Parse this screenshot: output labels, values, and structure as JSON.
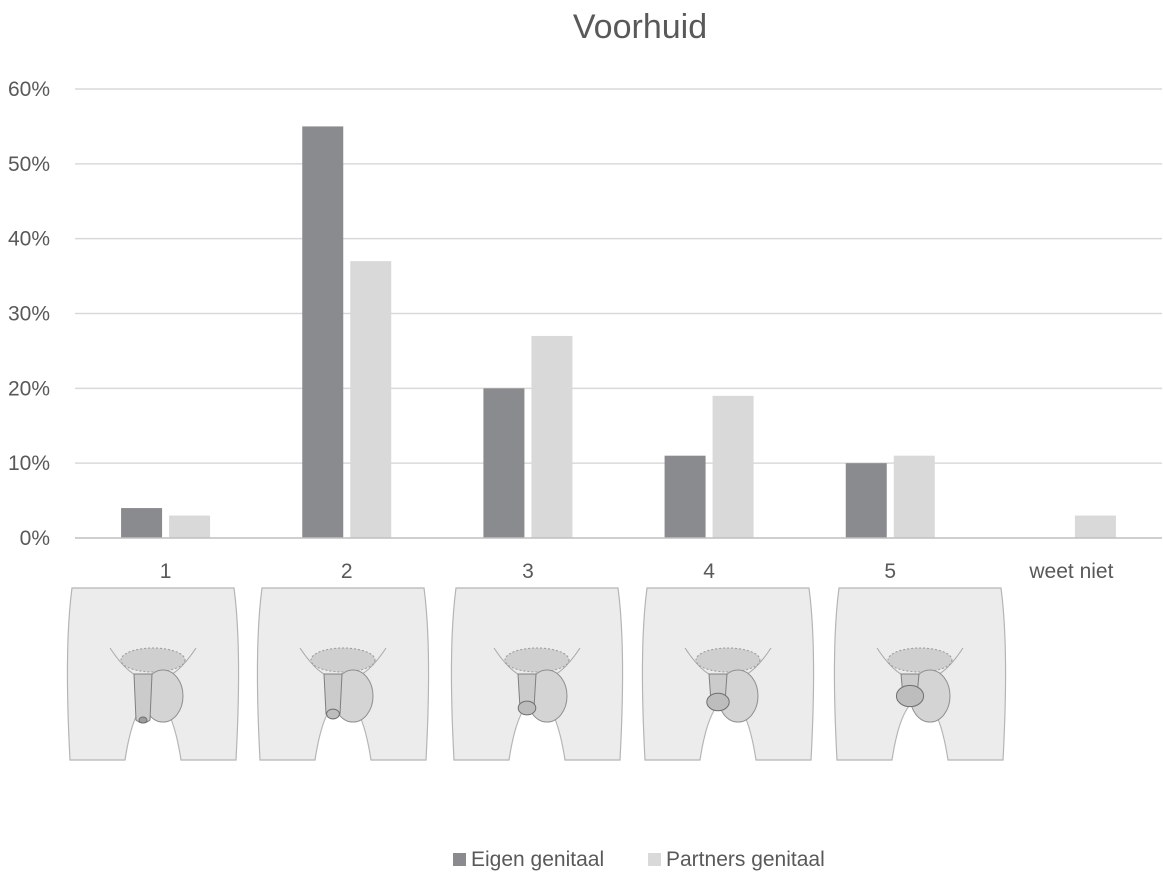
{
  "chart_data": {
    "type": "bar",
    "title": "Voorhuid",
    "categories": [
      "1",
      "2",
      "3",
      "4",
      "5",
      "weet niet"
    ],
    "series": [
      {
        "name": "Eigen genitaal",
        "values": [
          4,
          55,
          20,
          11,
          10,
          0
        ],
        "color": "#8a8b8f"
      },
      {
        "name": "Partners genitaal",
        "values": [
          3,
          37,
          27,
          19,
          11,
          3
        ],
        "color": "#d9d9d9"
      }
    ],
    "ylim": [
      0,
      60
    ],
    "yticks": [
      "0%",
      "10%",
      "20%",
      "30%",
      "40%",
      "50%",
      "60%"
    ],
    "ytick_values": [
      0,
      10,
      20,
      30,
      40,
      50,
      60
    ],
    "grid": true,
    "legend": "bottom"
  },
  "illustrations": [
    {
      "category": "1",
      "icon": "pelvis-foreskin-fully-covered-icon"
    },
    {
      "category": "2",
      "icon": "pelvis-foreskin-mostly-covered-icon"
    },
    {
      "category": "3",
      "icon": "pelvis-foreskin-partly-covered-icon"
    },
    {
      "category": "4",
      "icon": "pelvis-foreskin-mostly-retracted-icon"
    },
    {
      "category": "5",
      "icon": "pelvis-foreskin-fully-retracted-icon"
    }
  ]
}
